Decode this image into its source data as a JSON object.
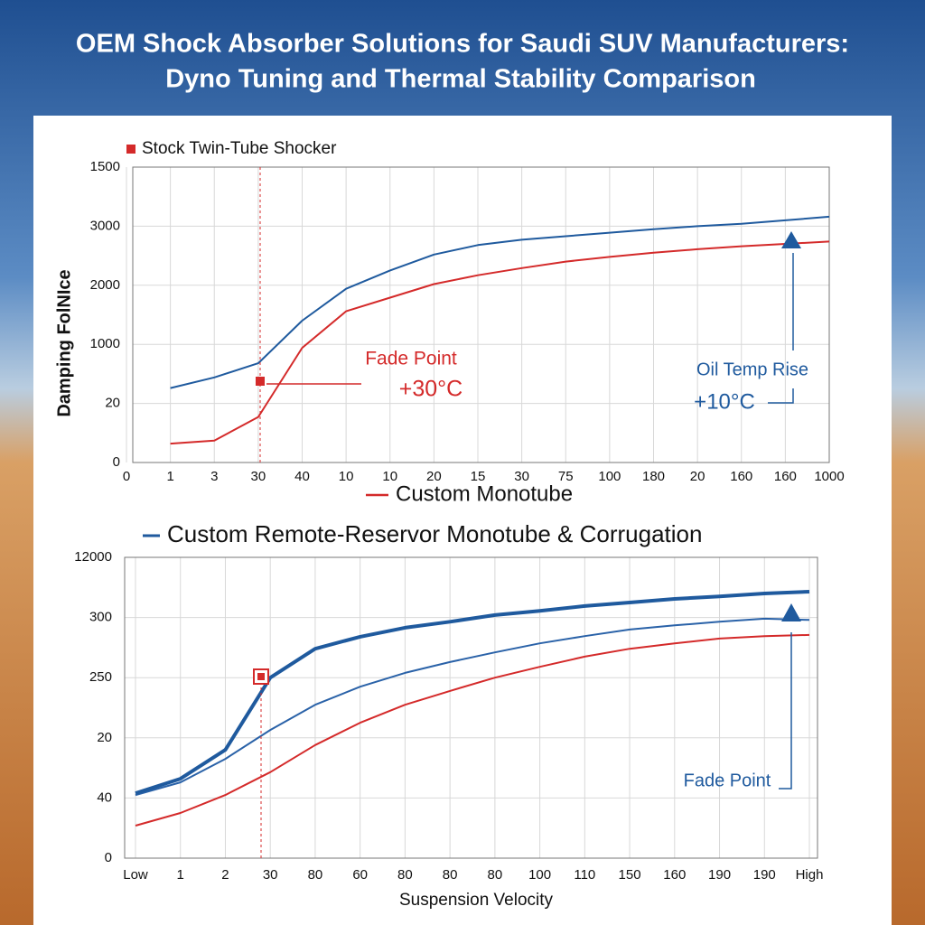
{
  "title": [
    "OEM Shock Absorber Solutions for Saudi SUV Manufacturers:",
    "Dyno Tuning and  Thermal Stability Comparison"
  ],
  "chart_data": [
    {
      "type": "line",
      "ylabel": "Damping FolNIce",
      "categories": [
        "0",
        "1",
        "3",
        "30",
        "40",
        "10",
        "10",
        "20",
        "15",
        "30",
        "75",
        "100",
        "180",
        "20",
        "160",
        "160",
        "1000"
      ],
      "ylim": [
        0,
        5
      ],
      "yticks": [
        0,
        {
          "value": 1,
          "label": "20"
        },
        {
          "value": 2,
          "label": "1000"
        },
        {
          "value": 3,
          "label": "2000"
        },
        {
          "value": 4,
          "label": "3000"
        },
        {
          "value": 5,
          "label": "1500"
        }
      ],
      "grid": true,
      "series": [
        {
          "name": "Stock Twin-Tube Shocker",
          "color": "#d42a2a",
          "values": [
            null,
            0.32,
            0.37,
            0.77,
            1.94,
            2.56,
            2.79,
            3.02,
            3.17,
            3.29,
            3.4,
            3.48,
            3.55,
            3.61,
            3.66,
            3.7,
            3.74
          ]
        },
        {
          "color": "#1f5a9e",
          "values": [
            null,
            1.26,
            1.44,
            1.68,
            2.4,
            2.94,
            3.25,
            3.52,
            3.68,
            3.77,
            3.83,
            3.89,
            3.95,
            4.0,
            4.04,
            4.1,
            4.16
          ]
        }
      ],
      "annotations": [
        {
          "text": "Fade Point",
          "color": "#d42a2a"
        },
        {
          "text": "+30°C",
          "color": "#d42a2a"
        },
        {
          "text": "Oil Temp Rise",
          "color": "#1f5a9e"
        },
        {
          "text": "+10°C",
          "color": "#1f5a9e"
        }
      ]
    },
    {
      "type": "line",
      "xlabel": "Suspension Velocity",
      "categories": [
        "Low",
        "1",
        "2",
        "30",
        "80",
        "60",
        "80",
        "80",
        "80",
        "100",
        "110",
        "150",
        "160",
        "190",
        "190",
        "High"
      ],
      "ylim": [
        0,
        5
      ],
      "yticks": [
        0,
        {
          "value": 1,
          "label": "40"
        },
        {
          "value": 2,
          "label": "20"
        },
        {
          "value": 3,
          "label": "250"
        },
        {
          "value": 4,
          "label": "300"
        },
        {
          "value": 5,
          "label": "12000"
        }
      ],
      "grid": true,
      "series": [
        {
          "name": "Custom Monotube",
          "color": "#d42a2a",
          "values": [
            0.54,
            0.75,
            1.05,
            1.43,
            1.88,
            2.25,
            2.55,
            2.78,
            3.0,
            3.18,
            3.35,
            3.48,
            3.57,
            3.65,
            3.69,
            3.71
          ]
        },
        {
          "color": "#2a62a8",
          "values": [
            1.05,
            1.26,
            1.65,
            2.13,
            2.55,
            2.85,
            3.08,
            3.26,
            3.42,
            3.57,
            3.69,
            3.8,
            3.87,
            3.93,
            3.98,
            3.96
          ]
        },
        {
          "name": "Custom Remote-Reservor Monotube  & Corrugation",
          "color": "#1f5a9e",
          "values": [
            1.08,
            1.32,
            1.8,
            3.0,
            3.48,
            3.68,
            3.83,
            3.93,
            4.04,
            4.11,
            4.19,
            4.25,
            4.31,
            4.35,
            4.4,
            4.43
          ]
        }
      ],
      "annotations": [
        {
          "text": "Fade Point",
          "color": "#1f5a9e"
        }
      ]
    }
  ]
}
